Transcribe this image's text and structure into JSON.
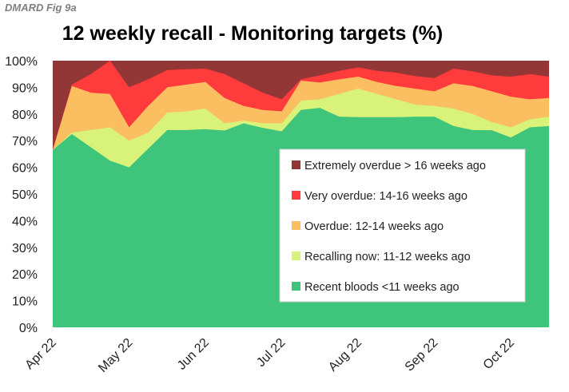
{
  "figure_label": "DMARD Fig 9a",
  "chart_data": {
    "type": "area",
    "stacked": true,
    "title": "12 weekly recall - Monitoring targets (%)",
    "xlabel": "",
    "ylabel": "",
    "ylim": [
      0,
      100
    ],
    "ytick_labels": [
      "0%",
      "10%",
      "20%",
      "30%",
      "40%",
      "50%",
      "60%",
      "70%",
      "80%",
      "90%",
      "100%"
    ],
    "xtick_labels": [
      "Apr 22",
      "May 22",
      "Jun 22",
      "Jul 22",
      "Aug 22",
      "Sep 22",
      "Oct 22"
    ],
    "xtick_positions": [
      0,
      4,
      8,
      12,
      16,
      20,
      24
    ],
    "x_count": 27,
    "legend_position": "center-right",
    "colors": {
      "recent": "#3ec47b",
      "recalling": "#d9f37a",
      "overdue": "#fbbf62",
      "very_overdue": "#ff3b3b",
      "extremely_overdue": "#933636"
    },
    "cumulative_tops": {
      "recent": [
        66.5,
        72.5,
        67.5,
        62.5,
        60,
        67,
        74,
        74,
        74.3,
        73.8,
        76.5,
        74.8,
        73.5,
        81.5,
        82.3,
        79,
        78.8,
        78.8,
        78.8,
        79,
        79,
        75.5,
        74,
        73.9,
        71.2,
        75,
        75.5
      ],
      "recalling": [
        66.5,
        73,
        74,
        75,
        70,
        73,
        80.5,
        81,
        82,
        76.5,
        77.5,
        76.5,
        76.5,
        85,
        85.5,
        87.5,
        89.5,
        87.5,
        85.5,
        83.5,
        83,
        82,
        80,
        77,
        75,
        78,
        79
      ],
      "overdue": [
        66.5,
        90.5,
        88,
        87.5,
        75,
        83,
        90,
        91,
        92,
        86,
        83,
        81.5,
        81,
        92.5,
        91.8,
        93,
        94,
        92,
        90.5,
        89.5,
        88.5,
        91.5,
        90.5,
        88.5,
        86.5,
        85.5,
        86
      ],
      "very_overdue": [
        66.5,
        91,
        95,
        100,
        90,
        93,
        96.5,
        96.8,
        97,
        95,
        91.5,
        88,
        85.5,
        93,
        94.5,
        96.2,
        97.5,
        96.2,
        95.5,
        94.2,
        93.5,
        97,
        96,
        94.5,
        94,
        95,
        94
      ],
      "extremely_overdue": [
        100,
        100,
        100,
        100,
        100,
        100,
        100,
        100,
        100,
        100,
        100,
        100,
        100,
        100,
        100,
        100,
        100,
        100,
        100,
        100,
        100,
        100,
        100,
        100,
        100,
        100,
        100
      ]
    },
    "series": [
      {
        "key": "extremely_overdue",
        "name": "Extremely overdue > 16 weeks ago"
      },
      {
        "key": "very_overdue",
        "name": "Very overdue: 14-16 weeks ago"
      },
      {
        "key": "overdue",
        "name": "Overdue: 12-14 weeks ago"
      },
      {
        "key": "recalling",
        "name": "Recalling now: 11-12 weeks ago"
      },
      {
        "key": "recent",
        "name": "Recent bloods <11 weeks ago"
      }
    ]
  }
}
